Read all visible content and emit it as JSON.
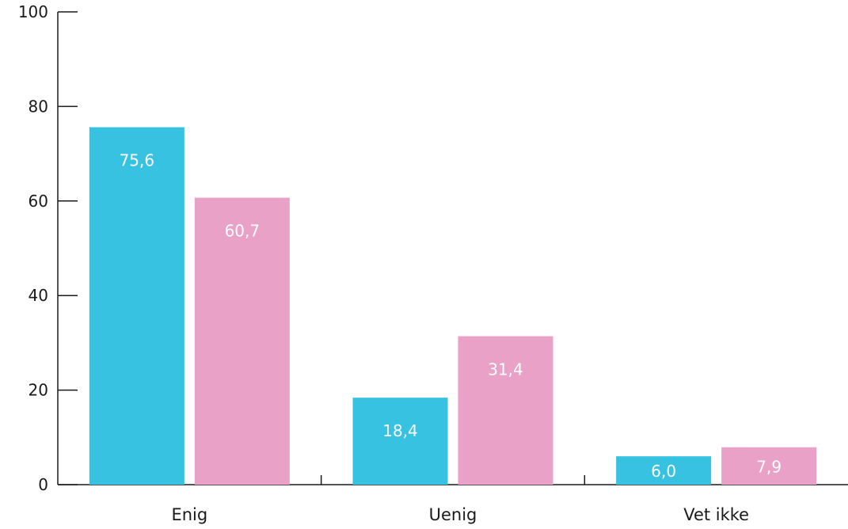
{
  "chart_data": {
    "type": "bar",
    "categories": [
      "Enig",
      "Uenig",
      "Vet ikke"
    ],
    "series": [
      {
        "values": [
          75.6,
          18.4,
          6.0
        ],
        "value_labels": [
          "75,6",
          "18,4",
          "6,0"
        ],
        "color": "#36c2e0"
      },
      {
        "values": [
          60.7,
          31.4,
          7.9
        ],
        "value_labels": [
          "60,7",
          "31,4",
          "7,9"
        ],
        "color": "#eaa1c8"
      }
    ],
    "ylim": [
      0,
      100
    ],
    "yticks": [
      0,
      20,
      40,
      60,
      80,
      100
    ],
    "ytick_labels": [
      "0",
      "20",
      "40",
      "60",
      "80",
      "100"
    ],
    "grid": false,
    "legend": "none",
    "axis_color": "#1a1a1a"
  }
}
